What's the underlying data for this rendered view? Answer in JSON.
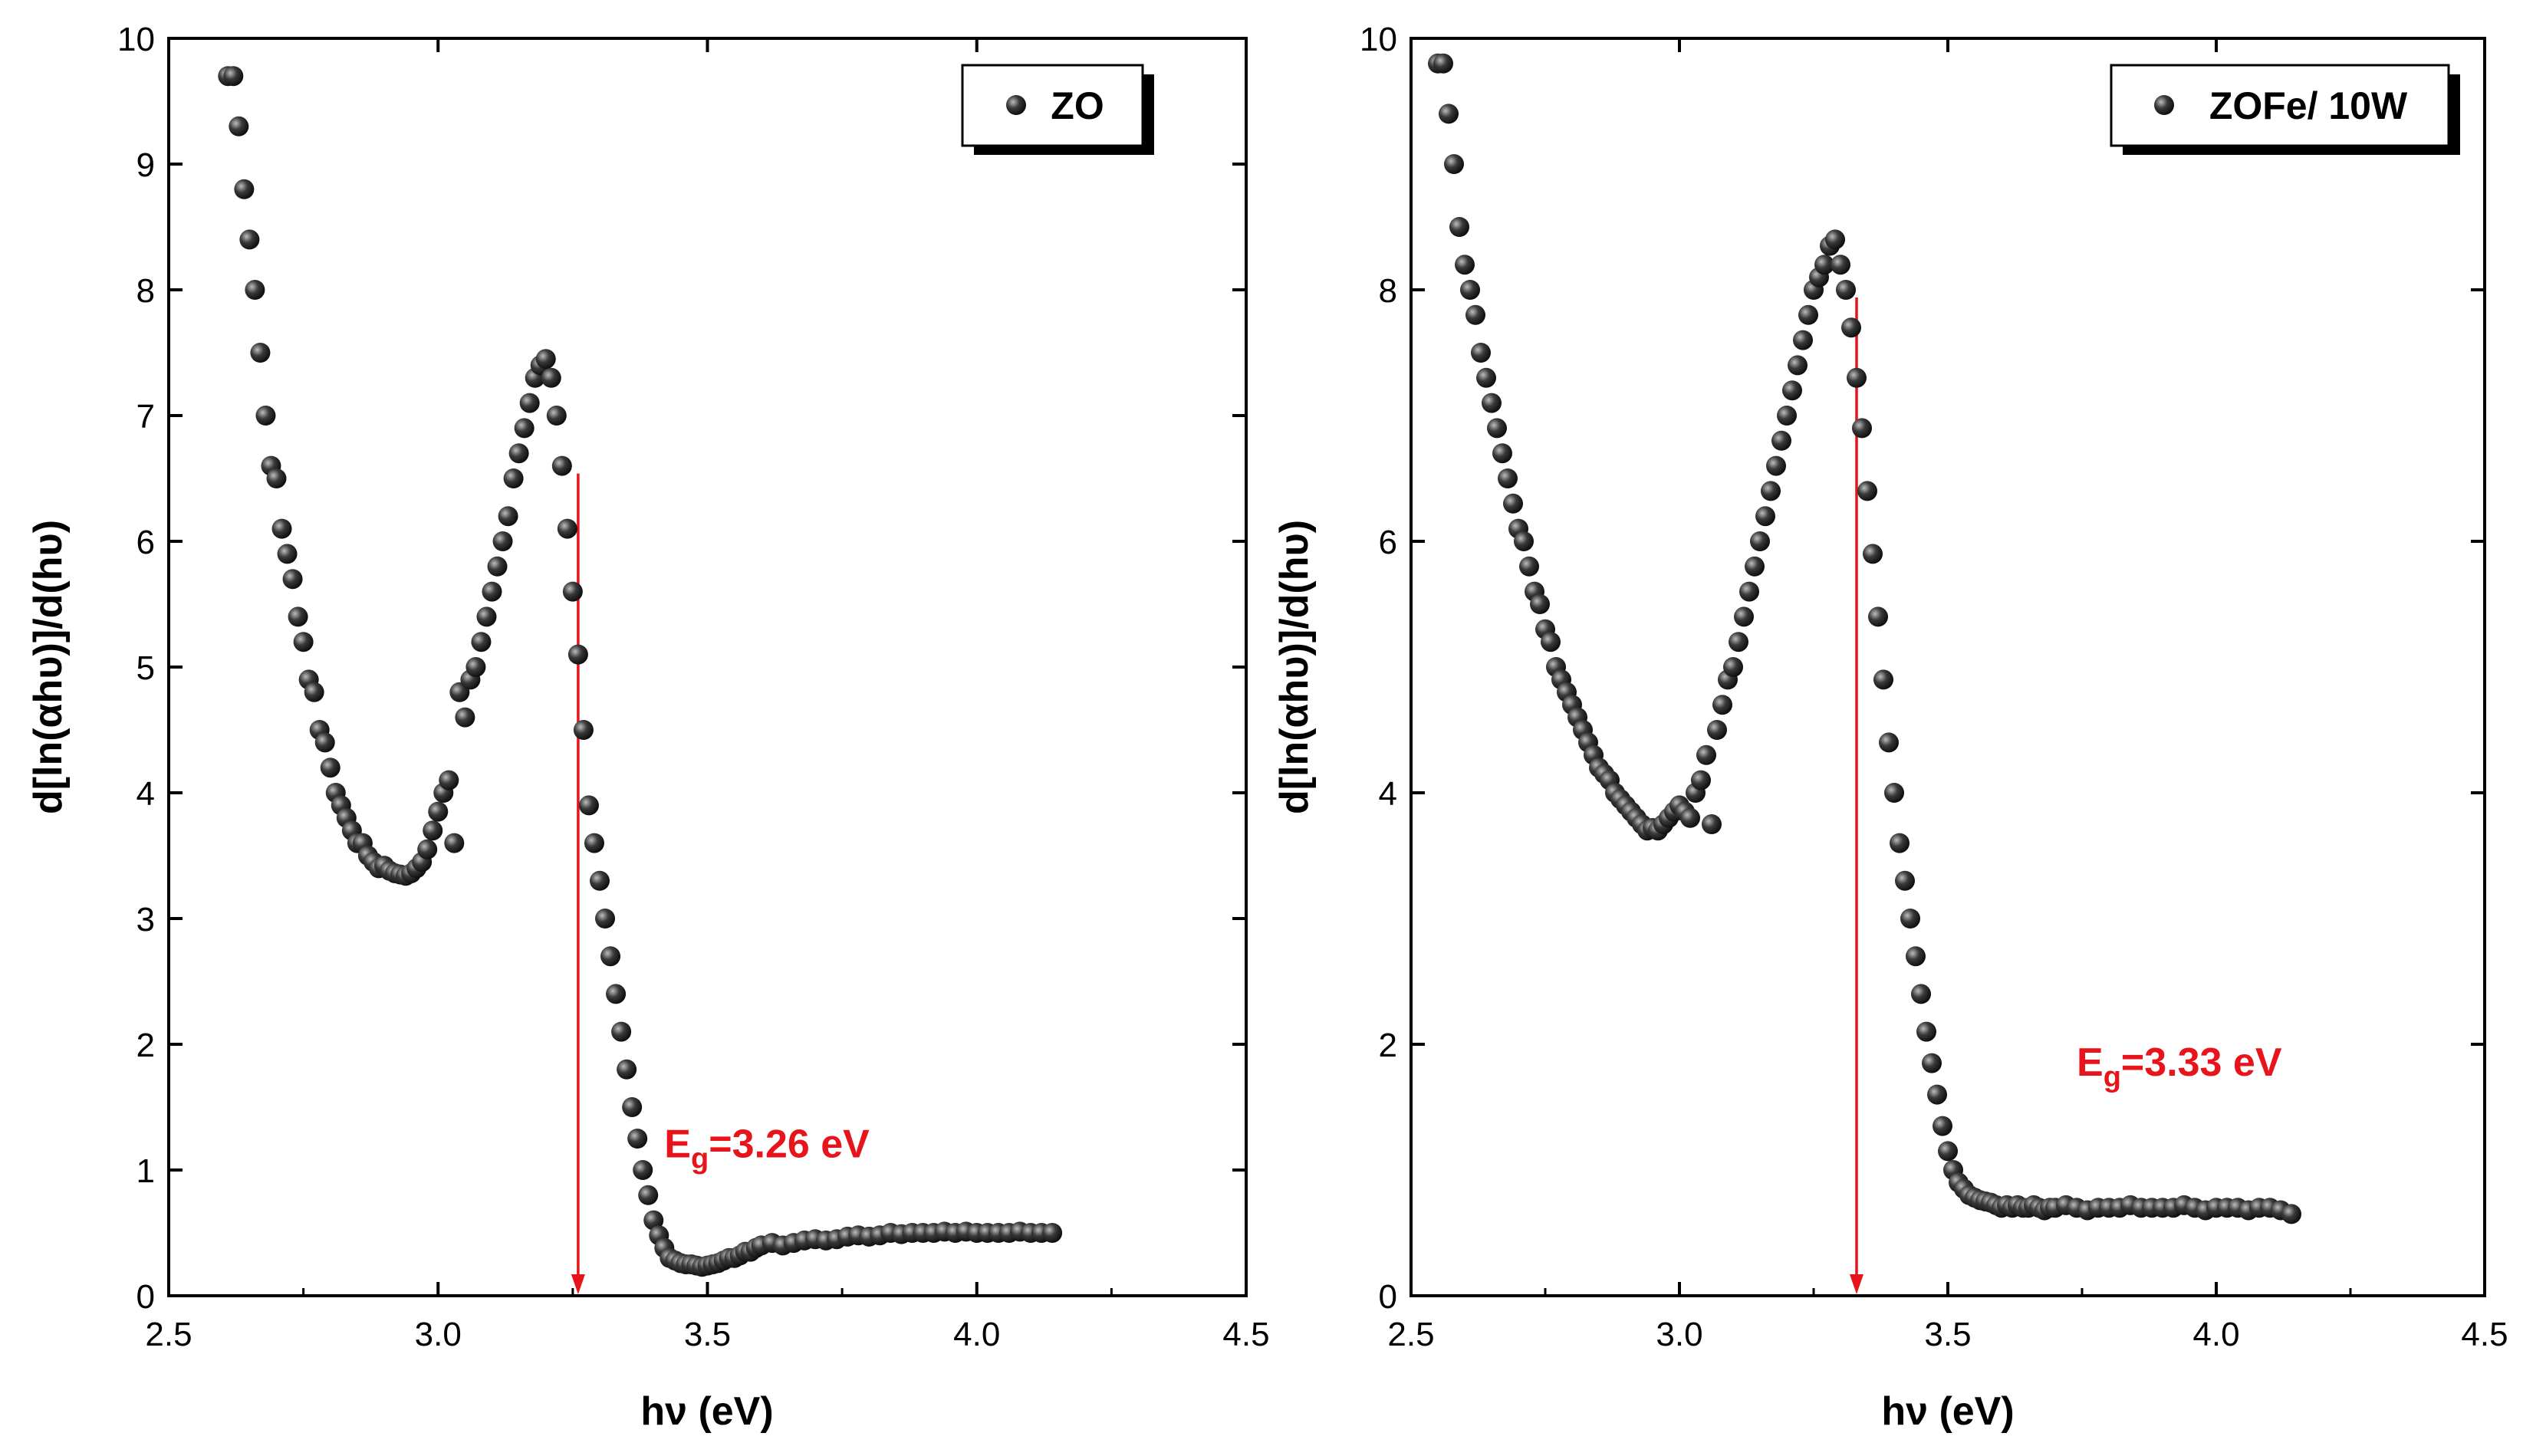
{
  "chart_data": [
    {
      "type": "scatter",
      "panel": "left",
      "legend": "ZO",
      "legend_placement": "top-right",
      "xlabel": "hν (eV)",
      "ylabel": "d[ln(αhυ)]/d(hυ)",
      "xlim": [
        2.5,
        4.5
      ],
      "ylim": [
        0,
        10
      ],
      "xticks": [
        "2.5",
        "3.0",
        "3.5",
        "4.0",
        "4.5"
      ],
      "yticks": [
        "0",
        "1",
        "2",
        "3",
        "4",
        "5",
        "6",
        "7",
        "8",
        "9",
        "10"
      ],
      "xtick_values": [
        2.5,
        3.0,
        3.5,
        4.0,
        4.5
      ],
      "ytick_values": [
        0,
        1,
        2,
        3,
        4,
        5,
        6,
        7,
        8,
        9,
        10
      ],
      "marker_color": "#1a1a1a",
      "annotation": {
        "prefix": "E",
        "sub": "g",
        "suffix": "=3.26 eV",
        "x": 3.26,
        "color": "#e8141b",
        "label_x": 3.42,
        "label_y": 1.1
      },
      "x": [
        2.61,
        2.62,
        2.63,
        2.64,
        2.65,
        2.66,
        2.67,
        2.68,
        2.69,
        2.7,
        2.71,
        2.72,
        2.73,
        2.74,
        2.75,
        2.76,
        2.77,
        2.78,
        2.79,
        2.8,
        2.81,
        2.82,
        2.83,
        2.84,
        2.85,
        2.86,
        2.87,
        2.88,
        2.89,
        2.9,
        2.91,
        2.92,
        2.93,
        2.94,
        2.95,
        2.96,
        2.97,
        2.98,
        2.99,
        3.0,
        3.01,
        3.02,
        3.03,
        3.04,
        3.05,
        3.06,
        3.07,
        3.08,
        3.09,
        3.1,
        3.11,
        3.12,
        3.13,
        3.14,
        3.15,
        3.16,
        3.17,
        3.18,
        3.19,
        3.2,
        3.21,
        3.22,
        3.23,
        3.24,
        3.25,
        3.26,
        3.27,
        3.28,
        3.29,
        3.3,
        3.31,
        3.32,
        3.33,
        3.34,
        3.35,
        3.36,
        3.37,
        3.38,
        3.39,
        3.4,
        3.41,
        3.42,
        3.43,
        3.44,
        3.45,
        3.46,
        3.47,
        3.48,
        3.49,
        3.5,
        3.51,
        3.52,
        3.53,
        3.54,
        3.55,
        3.56,
        3.57,
        3.58,
        3.59,
        3.6,
        3.62,
        3.64,
        3.66,
        3.68,
        3.7,
        3.72,
        3.74,
        3.76,
        3.78,
        3.8,
        3.82,
        3.84,
        3.86,
        3.88,
        3.9,
        3.92,
        3.94,
        3.96,
        3.98,
        4.0,
        4.02,
        4.04,
        4.06,
        4.08,
        4.1,
        4.12,
        4.14
      ],
      "y": [
        9.7,
        9.7,
        9.3,
        8.8,
        8.4,
        8.0,
        7.5,
        7.0,
        6.6,
        6.5,
        6.1,
        5.9,
        5.7,
        5.4,
        5.2,
        4.9,
        4.8,
        4.5,
        4.4,
        4.2,
        4.0,
        3.9,
        3.8,
        3.7,
        3.6,
        3.6,
        3.5,
        3.45,
        3.4,
        3.42,
        3.38,
        3.36,
        3.35,
        3.34,
        3.36,
        3.4,
        3.45,
        3.55,
        3.7,
        3.85,
        4.0,
        4.1,
        3.6,
        4.8,
        4.6,
        4.9,
        5.0,
        5.2,
        5.4,
        5.6,
        5.8,
        6.0,
        6.2,
        6.5,
        6.7,
        6.9,
        7.1,
        7.3,
        7.4,
        7.45,
        7.3,
        7.0,
        6.6,
        6.1,
        5.6,
        5.1,
        4.5,
        3.9,
        3.6,
        3.3,
        3.0,
        2.7,
        2.4,
        2.1,
        1.8,
        1.5,
        1.25,
        1.0,
        0.8,
        0.6,
        0.48,
        0.38,
        0.3,
        0.28,
        0.26,
        0.25,
        0.25,
        0.24,
        0.23,
        0.24,
        0.25,
        0.26,
        0.28,
        0.3,
        0.3,
        0.32,
        0.35,
        0.35,
        0.38,
        0.4,
        0.42,
        0.4,
        0.42,
        0.44,
        0.45,
        0.44,
        0.45,
        0.47,
        0.48,
        0.47,
        0.48,
        0.5,
        0.49,
        0.5,
        0.5,
        0.5,
        0.51,
        0.5,
        0.51,
        0.5,
        0.5,
        0.5,
        0.5,
        0.51,
        0.5,
        0.5,
        0.5
      ]
    },
    {
      "type": "scatter",
      "panel": "right",
      "legend": "ZOFe/ 10W",
      "legend_placement": "top-right",
      "xlabel": "hν (eV)",
      "ylabel": "d[ln(αhυ)]/d(hυ)",
      "xlim": [
        2.5,
        4.5
      ],
      "ylim": [
        0,
        10
      ],
      "xticks": [
        "2.5",
        "3.0",
        "3.5",
        "4.0",
        "4.5"
      ],
      "yticks": [
        "0",
        "2",
        "4",
        "6",
        "8",
        "10"
      ],
      "xtick_values": [
        2.5,
        3.0,
        3.5,
        4.0,
        4.5
      ],
      "ytick_values": [
        0,
        2,
        4,
        6,
        8,
        10
      ],
      "marker_color": "#1a1a1a",
      "annotation": {
        "prefix": "E",
        "sub": "g",
        "suffix": "=3.33 eV",
        "x": 3.33,
        "color": "#e8141b",
        "label_x": 3.74,
        "label_y": 1.75
      },
      "x": [
        2.55,
        2.56,
        2.57,
        2.58,
        2.59,
        2.6,
        2.61,
        2.62,
        2.63,
        2.64,
        2.65,
        2.66,
        2.67,
        2.68,
        2.69,
        2.7,
        2.71,
        2.72,
        2.73,
        2.74,
        2.75,
        2.76,
        2.77,
        2.78,
        2.79,
        2.8,
        2.81,
        2.82,
        2.83,
        2.84,
        2.85,
        2.86,
        2.87,
        2.88,
        2.89,
        2.9,
        2.91,
        2.92,
        2.93,
        2.94,
        2.95,
        2.96,
        2.97,
        2.98,
        2.99,
        3.0,
        3.01,
        3.02,
        3.03,
        3.04,
        3.05,
        3.06,
        3.07,
        3.08,
        3.09,
        3.1,
        3.11,
        3.12,
        3.13,
        3.14,
        3.15,
        3.16,
        3.17,
        3.18,
        3.19,
        3.2,
        3.21,
        3.22,
        3.23,
        3.24,
        3.25,
        3.26,
        3.27,
        3.28,
        3.29,
        3.3,
        3.31,
        3.32,
        3.33,
        3.34,
        3.35,
        3.36,
        3.37,
        3.38,
        3.39,
        3.4,
        3.41,
        3.42,
        3.43,
        3.44,
        3.45,
        3.46,
        3.47,
        3.48,
        3.49,
        3.5,
        3.51,
        3.52,
        3.53,
        3.54,
        3.55,
        3.56,
        3.57,
        3.58,
        3.59,
        3.6,
        3.61,
        3.62,
        3.63,
        3.64,
        3.65,
        3.66,
        3.67,
        3.68,
        3.69,
        3.7,
        3.72,
        3.74,
        3.76,
        3.78,
        3.8,
        3.82,
        3.84,
        3.86,
        3.88,
        3.9,
        3.92,
        3.94,
        3.96,
        3.98,
        4.0,
        4.02,
        4.04,
        4.06,
        4.08,
        4.1,
        4.12,
        4.14
      ],
      "y": [
        9.8,
        9.8,
        9.4,
        9.0,
        8.5,
        8.2,
        8.0,
        7.8,
        7.5,
        7.3,
        7.1,
        6.9,
        6.7,
        6.5,
        6.3,
        6.1,
        6.0,
        5.8,
        5.6,
        5.5,
        5.3,
        5.2,
        5.0,
        4.9,
        4.8,
        4.7,
        4.6,
        4.5,
        4.4,
        4.3,
        4.2,
        4.15,
        4.1,
        4.0,
        3.95,
        3.9,
        3.85,
        3.8,
        3.75,
        3.7,
        3.72,
        3.7,
        3.75,
        3.8,
        3.85,
        3.9,
        3.85,
        3.8,
        4.0,
        4.1,
        4.3,
        3.75,
        4.5,
        4.7,
        4.9,
        5.0,
        5.2,
        5.4,
        5.6,
        5.8,
        6.0,
        6.2,
        6.4,
        6.6,
        6.8,
        7.0,
        7.2,
        7.4,
        7.6,
        7.8,
        8.0,
        8.1,
        8.2,
        8.35,
        8.4,
        8.2,
        8.0,
        7.7,
        7.3,
        6.9,
        6.4,
        5.9,
        5.4,
        4.9,
        4.4,
        4.0,
        3.6,
        3.3,
        3.0,
        2.7,
        2.4,
        2.1,
        1.85,
        1.6,
        1.35,
        1.15,
        1.0,
        0.9,
        0.85,
        0.8,
        0.78,
        0.76,
        0.75,
        0.74,
        0.72,
        0.7,
        0.72,
        0.7,
        0.72,
        0.7,
        0.7,
        0.72,
        0.7,
        0.68,
        0.7,
        0.7,
        0.72,
        0.7,
        0.68,
        0.7,
        0.7,
        0.7,
        0.72,
        0.7,
        0.7,
        0.7,
        0.7,
        0.72,
        0.7,
        0.68,
        0.7,
        0.7,
        0.7,
        0.68,
        0.7,
        0.7,
        0.68,
        0.65
      ]
    }
  ]
}
